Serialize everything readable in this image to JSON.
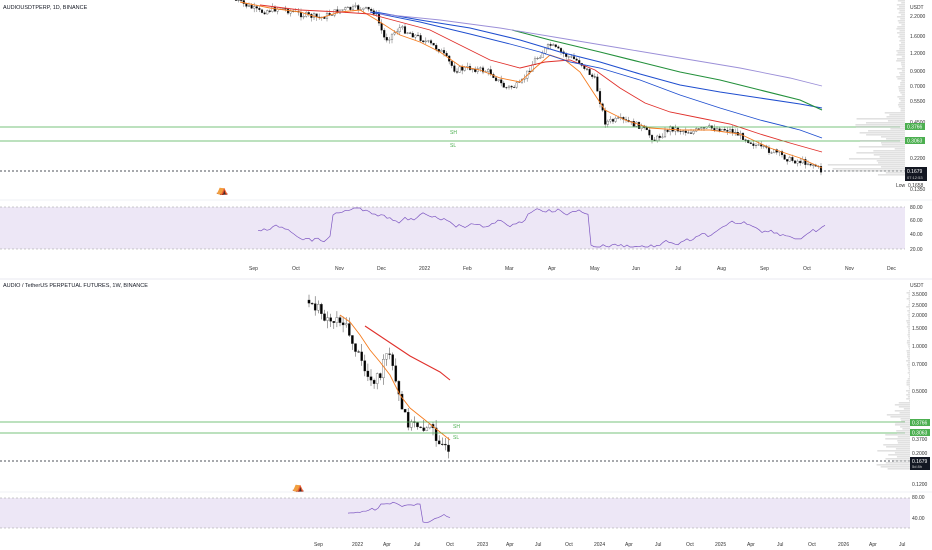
{
  "colors": {
    "bg": "#ffffff",
    "up": "#b3b3b3",
    "down": "#000000",
    "ema_fast": "#f57c1f",
    "ema_mid": "#e0302b",
    "ema_slow": "#1f4ecf",
    "ema_slower": "#23903b",
    "ema_slowest": "#9b8fd8",
    "level_green": "#4caf50",
    "rsi_band": "#ede7f6",
    "rsi_line": "#7e57c2"
  },
  "panel_top": {
    "symbol": "AUDIOUSDTPERP, 1D, BINANCE",
    "currency": "USDT",
    "price_ticks": [
      "2.2000",
      "1.6000",
      "1.2000",
      "0.9000",
      "0.7000",
      "0.5500",
      "0.4500",
      "0.2200",
      "0.1350"
    ],
    "level_sh": {
      "label": "SH",
      "price_tag": "0.3766"
    },
    "level_sl": {
      "label": "SL",
      "price_tag": "0.3063"
    },
    "last_price_tag": "0.1679",
    "last_price_sub": "07:12:53",
    "low_label": "Low",
    "low_tag": "0.1658",
    "rsi_ticks": [
      "80.00",
      "60.00",
      "40.00",
      "20.00"
    ],
    "time_ticks": [
      "Sep",
      "Oct",
      "Nov",
      "Dec",
      "2022",
      "Feb",
      "Mar",
      "Apr",
      "May",
      "Jun",
      "Jul",
      "Aug",
      "Sep",
      "Oct",
      "Nov",
      "Dec"
    ]
  },
  "panel_bottom": {
    "symbol": "AUDIO / TetherUS PERPETUAL FUTURES, 1W, BINANCE",
    "currency": "USDT",
    "price_ticks": [
      "3.5000",
      "2.5000",
      "2.0000",
      "1.5000",
      "1.0000",
      "0.7000",
      "0.5000",
      "0.3700",
      "0.2000",
      "0.1200"
    ],
    "level_sh": {
      "label": "SH",
      "price_tag": "0.3766"
    },
    "level_sl": {
      "label": "SL",
      "price_tag": "0.3063"
    },
    "last_price_tag": "0.1679",
    "last_price_sub": "5d 8h",
    "rsi_ticks": [
      "80.00",
      "40.00"
    ],
    "time_ticks": [
      "Sep",
      "2022",
      "Apr",
      "Jul",
      "Oct",
      "2023",
      "Apr",
      "Jul",
      "Oct",
      "2024",
      "Apr",
      "Jul",
      "Oct",
      "2025",
      "Apr",
      "Jul",
      "Oct",
      "2026",
      "Apr",
      "Jul"
    ]
  },
  "chart_data": [
    {
      "type": "line",
      "title": "AUDIOUSDTPERP, 1D, BINANCE",
      "note": "candlestick chart with moving averages and RSI pane",
      "x": [
        "Sep",
        "Oct",
        "Nov",
        "Dec",
        "2022",
        "Feb",
        "Mar",
        "Apr",
        "May",
        "Jun",
        "Jul",
        "Aug",
        "Sep",
        "Oct"
      ],
      "series": [
        {
          "values": [
            2.5,
            2.3,
            2.4,
            2.1,
            1.5,
            1.0,
            0.8,
            1.6,
            0.5,
            0.37,
            0.4,
            0.35,
            0.28,
            0.17
          ]
        }
      ],
      "y_scale": "log",
      "ylabel": "USDT"
    },
    {
      "type": "line",
      "title": "AUDIO / TetherUS PERPETUAL FUTURES, 1W, BINANCE",
      "note": "candlestick chart with moving averages and RSI pane",
      "x": [
        "Sep",
        "2022",
        "Apr",
        "Jul",
        "Oct"
      ],
      "series": [
        {
          "values": [
            3.3,
            2.4,
            1.5,
            0.37,
            0.17
          ]
        }
      ],
      "y_scale": "log",
      "ylabel": "USDT"
    }
  ]
}
